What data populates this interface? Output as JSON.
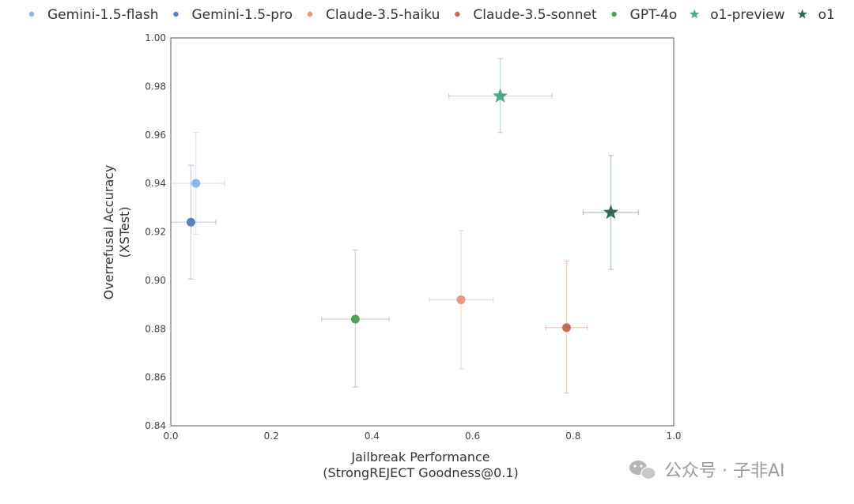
{
  "chart_data": {
    "type": "scatter",
    "xlabel_lines": [
      "Jailbreak Performance",
      "(StrongREJECT Goodness@0.1)"
    ],
    "ylabel_lines": [
      "Overrefusal Accuracy",
      "(XSTest)"
    ],
    "xlim": [
      0.0,
      1.0
    ],
    "ylim": [
      0.84,
      1.0
    ],
    "x_ticks": [
      "0.0",
      "0.2",
      "0.4",
      "0.6",
      "0.8",
      "1.0"
    ],
    "y_ticks": [
      "0.84",
      "0.86",
      "0.88",
      "0.90",
      "0.92",
      "0.94",
      "0.96",
      "0.98",
      "1.00"
    ],
    "grid": false,
    "legend_position": "top",
    "series": [
      {
        "name": "Gemini-1.5-flash",
        "marker": "circle",
        "color": "#8fb4ec",
        "x": 0.05,
        "y": 0.94,
        "xerr": [
          0.0,
          0.107
        ],
        "yerr": [
          0.919,
          0.961
        ]
      },
      {
        "name": "Gemini-1.5-pro",
        "marker": "circle",
        "color": "#5a7fc2",
        "x": 0.04,
        "y": 0.924,
        "xerr": [
          0.0,
          0.09
        ],
        "yerr": [
          0.9005,
          0.9475
        ]
      },
      {
        "name": "Claude-3.5-haiku",
        "marker": "circle",
        "color": "#e8987a",
        "x": 0.577,
        "y": 0.892,
        "xerr": [
          0.514,
          0.641
        ],
        "yerr": [
          0.8635,
          0.9205
        ]
      },
      {
        "name": "Claude-3.5-sonnet",
        "marker": "circle",
        "color": "#c86d52",
        "x": 0.787,
        "y": 0.8805,
        "xerr": [
          0.746,
          0.828
        ],
        "yerr": [
          0.8535,
          0.908
        ]
      },
      {
        "name": "GPT-4o",
        "marker": "circle",
        "color": "#4fa05a",
        "x": 0.367,
        "y": 0.884,
        "xerr": [
          0.3,
          0.434
        ],
        "yerr": [
          0.856,
          0.9125
        ]
      },
      {
        "name": "o1-preview",
        "marker": "star",
        "color": "#4fa58a",
        "x": 0.655,
        "y": 0.976,
        "xerr": [
          0.553,
          0.758
        ],
        "yerr": [
          0.961,
          0.9915
        ]
      },
      {
        "name": "o1",
        "marker": "star",
        "color": "#2e6b57",
        "x": 0.875,
        "y": 0.928,
        "xerr": [
          0.82,
          0.93
        ],
        "yerr": [
          0.9045,
          0.9515
        ]
      }
    ]
  },
  "watermark": {
    "text": "公众号 · 子非AI",
    "icon": "wechat-icon"
  }
}
